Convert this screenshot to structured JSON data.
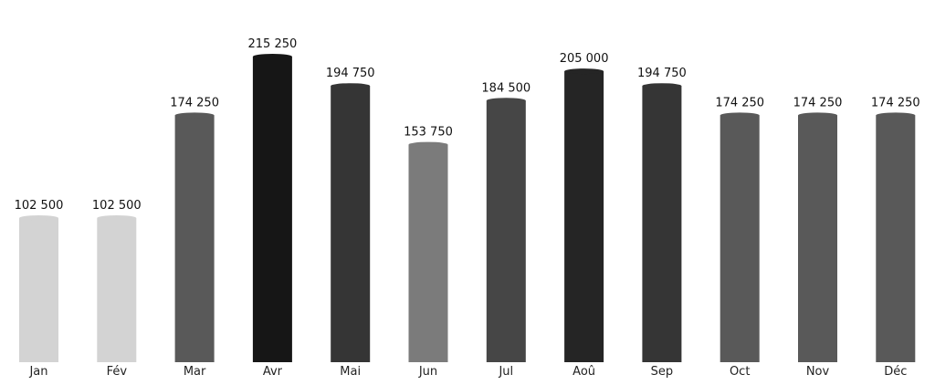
{
  "chart_data": {
    "type": "bar",
    "categories": [
      "Jan",
      "Fév",
      "Mar",
      "Avr",
      "Mai",
      "Jun",
      "Jul",
      "Aoû",
      "Sep",
      "Oct",
      "Nov",
      "Déc"
    ],
    "values": [
      102500,
      102500,
      174250,
      215250,
      194750,
      153750,
      184500,
      205000,
      194750,
      174250,
      174250,
      174250
    ],
    "value_labels": [
      "102 500",
      "102 500",
      "174 250",
      "215 250",
      "194 750",
      "153 750",
      "184 500",
      "205 000",
      "194 750",
      "174 250",
      "174 250",
      "174 250"
    ],
    "bar_colors": [
      "#d3d3d3",
      "#d3d3d3",
      "#595959",
      "#161616",
      "#353535",
      "#7b7b7b",
      "#464646",
      "#252525",
      "#353535",
      "#595959",
      "#595959",
      "#595959"
    ],
    "title": "",
    "xlabel": "",
    "ylabel": "",
    "ylim": [
      0,
      250000
    ],
    "grid": false,
    "legend": "none"
  }
}
